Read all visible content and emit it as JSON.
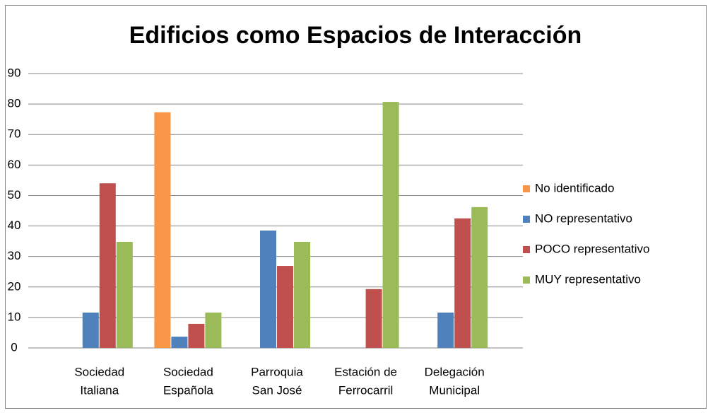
{
  "chart_data": {
    "type": "bar",
    "title": "Edificios como Espacios de Interacción",
    "categories": [
      [
        "Sociedad",
        "Italiana"
      ],
      [
        "Sociedad",
        "Española"
      ],
      [
        "Parroquia",
        "San José"
      ],
      [
        "Estación de",
        "Ferrocarril"
      ],
      [
        "Delegación",
        "Municipal"
      ]
    ],
    "series": [
      {
        "name": "No identificado",
        "color": "#f79646",
        "values": [
          0,
          77.3,
          0,
          0,
          0
        ]
      },
      {
        "name": "NO representativo",
        "color": "#4f81bd",
        "values": [
          11.6,
          3.7,
          38.5,
          0,
          11.6
        ]
      },
      {
        "name": "POCO representativo",
        "color": "#c0504d",
        "values": [
          54,
          7.9,
          26.9,
          19.3,
          42.5
        ]
      },
      {
        "name": "MUY representativo",
        "color": "#9bbb59",
        "values": [
          34.8,
          11.6,
          34.8,
          80.7,
          46.2
        ]
      }
    ],
    "ylim": [
      0,
      90
    ],
    "yticks": [
      0,
      10,
      20,
      30,
      40,
      50,
      60,
      70,
      80,
      90
    ],
    "grid": true,
    "legend": "right"
  }
}
